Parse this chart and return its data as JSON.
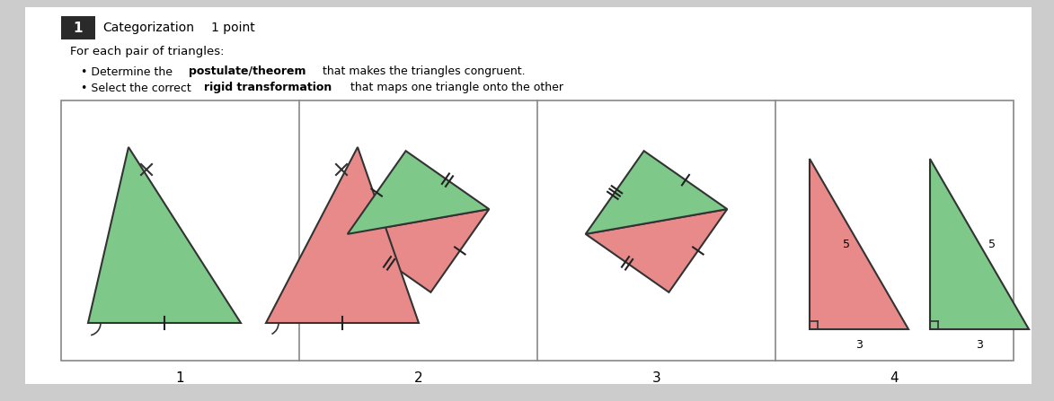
{
  "bg_color": "#cccccc",
  "green_color": "#7ec889",
  "pink_color": "#e88a8a",
  "section_labels": [
    "1",
    "2",
    "3",
    "4"
  ],
  "title_box_color": "#2a2a2a",
  "box_border_color": "#999999",
  "text_color": "#111111"
}
